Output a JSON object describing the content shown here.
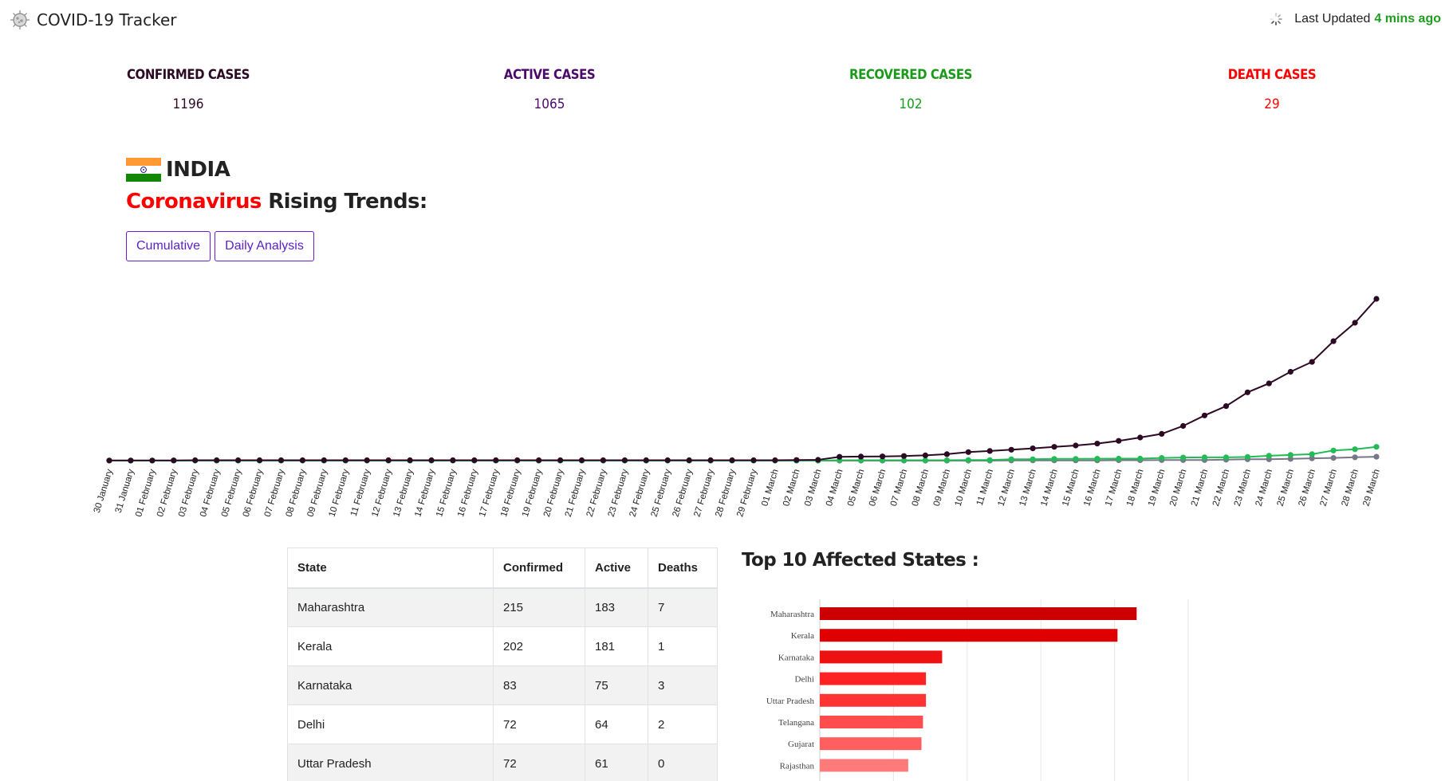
{
  "header": {
    "app_title": "COVID-19 Tracker",
    "last_updated_label": "Last Updated",
    "last_updated_value": "4 mins ago",
    "logo_icon": "virus-icon",
    "loading_icon": "spinner-icon"
  },
  "stats": [
    {
      "label": "CONFIRMED CASES",
      "value": "1196",
      "color": "#2c0a24"
    },
    {
      "label": "ACTIVE CASES",
      "value": "1065",
      "color": "#4b0a6b"
    },
    {
      "label": "RECOVERED CASES",
      "value": "102",
      "color": "#1a9a1a"
    },
    {
      "label": "DEATH CASES",
      "value": "29",
      "color": "#ff0000"
    }
  ],
  "country": {
    "name": "INDIA",
    "flag_icon": "india-flag-icon",
    "trend_title_highlight": "Coronavirus",
    "trend_title_rest": " Rising Trends:"
  },
  "buttons": {
    "cumulative": "Cumulative",
    "daily": "Daily Analysis"
  },
  "chart_data": [
    {
      "type": "line",
      "x": [
        "30 January",
        "31 January",
        "01 February",
        "02 February",
        "03 February",
        "04 February",
        "05 February",
        "06 February",
        "07 February",
        "08 February",
        "09 February",
        "10 February",
        "11 February",
        "12 February",
        "13 February",
        "14 February",
        "15 February",
        "16 February",
        "17 February",
        "18 February",
        "19 February",
        "20 February",
        "21 February",
        "22 February",
        "23 February",
        "24 February",
        "25 February",
        "26 February",
        "27 February",
        "28 February",
        "29 February",
        "01 March",
        "02 March",
        "03 March",
        "04 March",
        "05 March",
        "06 March",
        "07 March",
        "08 March",
        "09 March",
        "10 March",
        "11 March",
        "12 March",
        "13 March",
        "14 March",
        "15 March",
        "16 March",
        "17 March",
        "18 March",
        "19 March",
        "20 March",
        "21 March",
        "22 March",
        "23 March",
        "24 March",
        "25 March",
        "26 March",
        "27 March",
        "28 March",
        "29 March"
      ],
      "series": [
        {
          "color": "#2c0a24",
          "values": [
            1,
            1,
            1,
            2,
            3,
            3,
            3,
            3,
            3,
            3,
            3,
            3,
            3,
            3,
            3,
            3,
            3,
            3,
            3,
            3,
            3,
            3,
            3,
            3,
            3,
            3,
            3,
            3,
            3,
            3,
            3,
            3,
            5,
            6,
            28,
            30,
            31,
            34,
            39,
            48,
            63,
            71,
            81,
            91,
            102,
            112,
            126,
            146,
            171,
            198,
            256,
            334,
            403,
            505,
            571,
            657,
            730,
            883,
            1019,
            1196
          ]
        },
        {
          "color": "#22bb55",
          "values": [
            0,
            0,
            0,
            0,
            0,
            0,
            0,
            0,
            0,
            0,
            0,
            0,
            0,
            0,
            0,
            0,
            0,
            0,
            0,
            0,
            0,
            0,
            0,
            0,
            0,
            0,
            0,
            0,
            0,
            0,
            0,
            0,
            0,
            0,
            3,
            3,
            3,
            3,
            3,
            3,
            4,
            4,
            10,
            10,
            13,
            13,
            14,
            15,
            15,
            20,
            23,
            24,
            24,
            27,
            36,
            42,
            48,
            75,
            84,
            102
          ]
        },
        {
          "color": "#777788",
          "values": [
            0,
            0,
            0,
            0,
            0,
            0,
            0,
            0,
            0,
            0,
            0,
            0,
            0,
            0,
            0,
            0,
            0,
            0,
            0,
            0,
            0,
            0,
            0,
            0,
            0,
            0,
            0,
            0,
            0,
            0,
            0,
            0,
            0,
            0,
            0,
            0,
            0,
            0,
            0,
            0,
            0,
            0,
            1,
            2,
            2,
            2,
            2,
            3,
            3,
            4,
            4,
            4,
            7,
            10,
            10,
            13,
            17,
            20,
            25,
            29
          ]
        }
      ],
      "ylim": [
        0,
        1196
      ],
      "grid": false,
      "legend": "none"
    },
    {
      "type": "bar",
      "orientation": "horizontal",
      "categories": [
        "Maharashtra",
        "Kerala",
        "Karnataka",
        "Delhi",
        "Uttar Pradesh",
        "Telangana",
        "Gujarat",
        "Rajasthan"
      ],
      "values": [
        215,
        202,
        83,
        72,
        72,
        70,
        69,
        60
      ],
      "colors": [
        "#cc0000",
        "#e00000",
        "#ee1111",
        "#ff2222",
        "#ff3333",
        "#ff4d4d",
        "#ff5f5f",
        "#ff7b7b"
      ],
      "xlim": [
        0,
        250
      ],
      "grid": true
    }
  ],
  "table": {
    "headers": [
      "State",
      "Confirmed",
      "Active",
      "Deaths"
    ],
    "rows": [
      [
        "Maharashtra",
        "215",
        "183",
        "7"
      ],
      [
        "Kerala",
        "202",
        "181",
        "1"
      ],
      [
        "Karnataka",
        "83",
        "75",
        "3"
      ],
      [
        "Delhi",
        "72",
        "64",
        "2"
      ],
      [
        "Uttar Pradesh",
        "72",
        "61",
        "0"
      ]
    ]
  },
  "top10_title": "Top 10 Affected States :"
}
